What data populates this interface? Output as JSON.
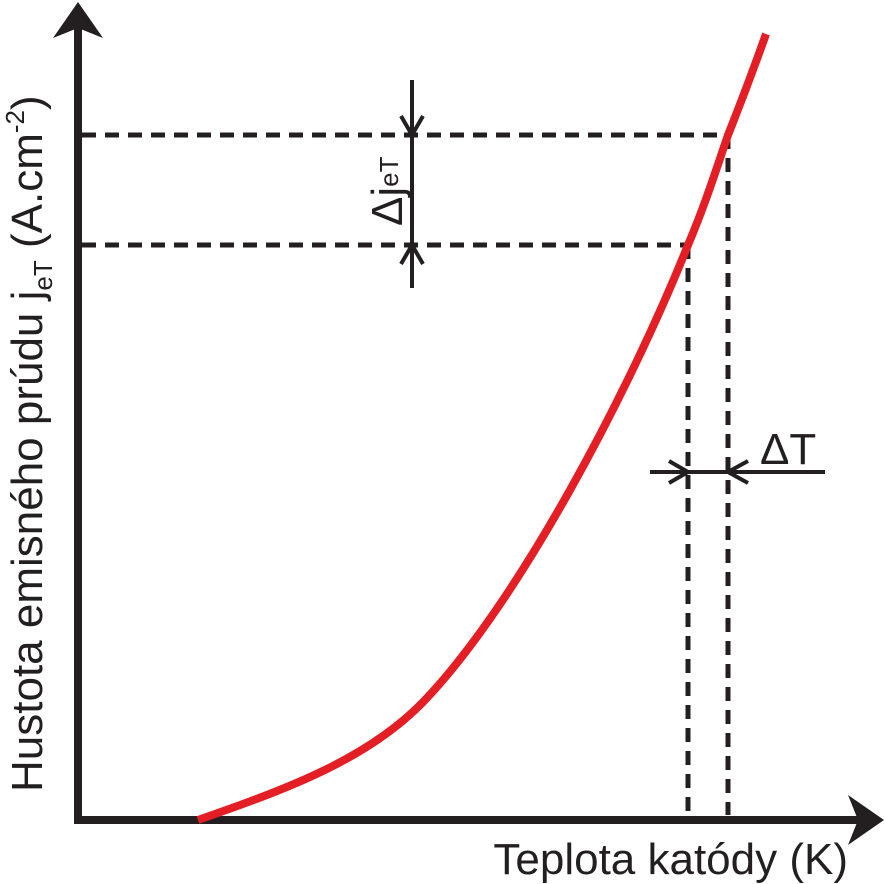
{
  "diagram": {
    "x_axis_label": "Teplota katódy (K)",
    "y_axis_label": {
      "main": "Hustota emisného prúdu j",
      "subscript": "eT",
      "unit_open": " (A.cm",
      "unit_sup": "-2",
      "unit_close": ")"
    },
    "delta_j": {
      "symbol": "Δj",
      "subscript": "eT"
    },
    "delta_t": {
      "symbol": "ΔT"
    },
    "colors": {
      "curve": "#e31e24",
      "axes": "#231f20"
    }
  }
}
